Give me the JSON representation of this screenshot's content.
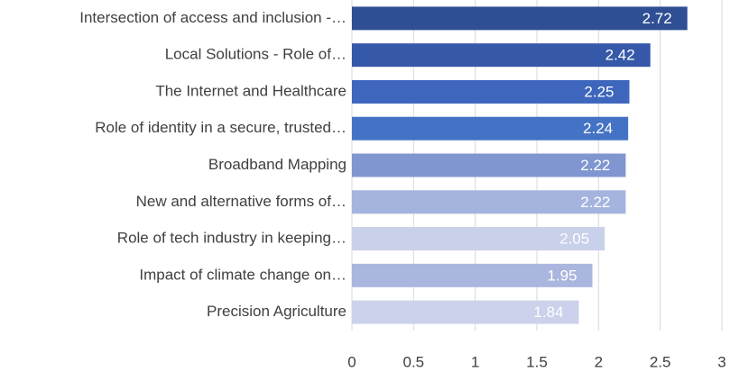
{
  "chart_data": {
    "type": "barh",
    "categories": [
      "Intersection of access and inclusion -…",
      "Local Solutions - Role of…",
      "The Internet and Healthcare",
      "Role of identity in a secure, trusted…",
      "Broadband Mapping",
      "New and alternative forms of…",
      "Role of tech industry in keeping…",
      "Impact of climate change on…",
      "Precision Agriculture"
    ],
    "values": [
      2.72,
      2.42,
      2.25,
      2.24,
      2.22,
      2.22,
      2.05,
      1.95,
      1.84
    ],
    "colors": [
      "#2f4f94",
      "#3558a8",
      "#3d66bc",
      "#4472c4",
      "#7f96d0",
      "#a5b4de",
      "#c9d0ea",
      "#aab6de",
      "#ccd2eb"
    ],
    "xlim": [
      0,
      3
    ],
    "xticks": [
      0,
      0.5,
      1,
      1.5,
      2,
      2.5,
      3
    ],
    "grid": true
  }
}
